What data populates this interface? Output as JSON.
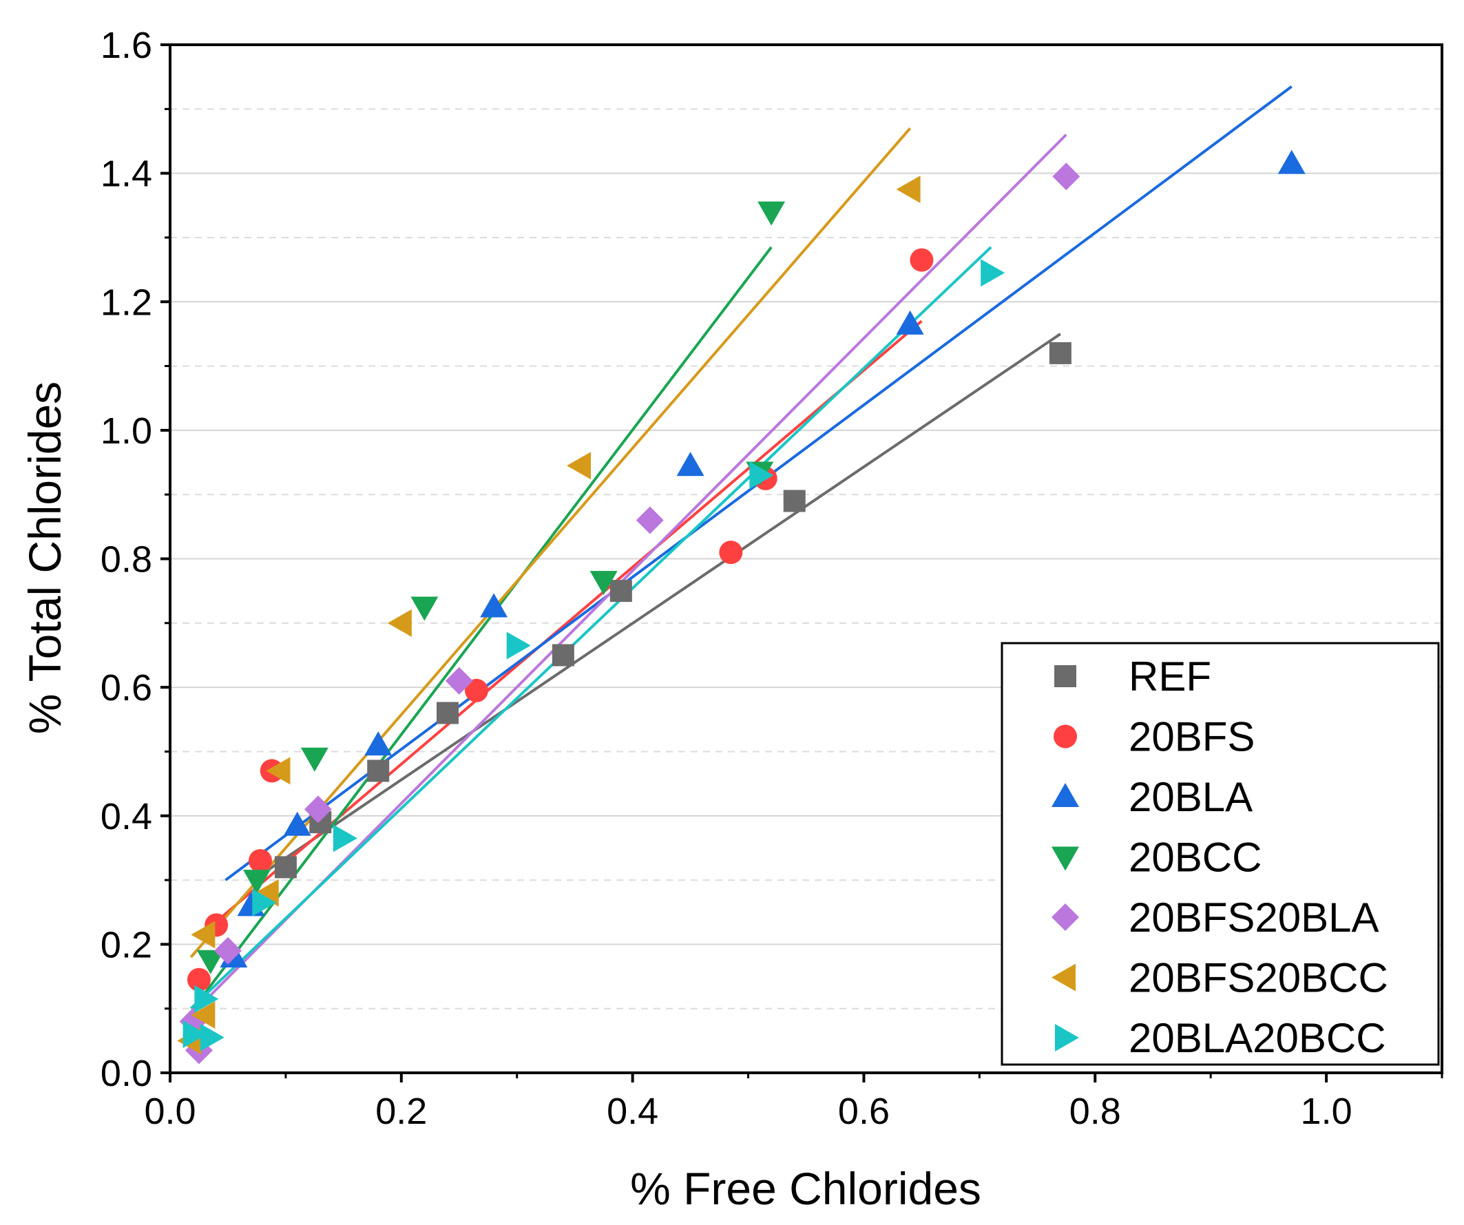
{
  "chart_data": {
    "type": "scatter",
    "title": "",
    "xlabel": "% Free Chlorides",
    "ylabel": "% Total Chlorides",
    "xlim": [
      0.0,
      1.1
    ],
    "ylim": [
      0.0,
      1.6
    ],
    "xticks": [
      "0.0",
      "0.2",
      "0.4",
      "0.6",
      "0.8",
      "1.0"
    ],
    "yticks": [
      "0.0",
      "0.2",
      "0.4",
      "0.6",
      "0.8",
      "1.0",
      "1.2",
      "1.4",
      "1.6"
    ],
    "legend_position": "bottom-right",
    "series": [
      {
        "name": "REF",
        "marker": "square",
        "color": "#6b6b6b",
        "points": [
          [
            0.1,
            0.32
          ],
          [
            0.13,
            0.39
          ],
          [
            0.18,
            0.47
          ],
          [
            0.24,
            0.56
          ],
          [
            0.34,
            0.65
          ],
          [
            0.39,
            0.75
          ],
          [
            0.54,
            0.89
          ],
          [
            0.77,
            1.12
          ]
        ],
        "fit": [
          [
            0.08,
            0.31
          ],
          [
            0.77,
            1.15
          ]
        ]
      },
      {
        "name": "20BFS",
        "marker": "circle",
        "color": "#ff4040",
        "points": [
          [
            0.025,
            0.145
          ],
          [
            0.04,
            0.23
          ],
          [
            0.078,
            0.33
          ],
          [
            0.088,
            0.47
          ],
          [
            0.265,
            0.595
          ],
          [
            0.485,
            0.81
          ],
          [
            0.515,
            0.925
          ],
          [
            0.65,
            1.265
          ]
        ],
        "fit": [
          [
            0.03,
            0.22
          ],
          [
            0.65,
            1.17
          ]
        ]
      },
      {
        "name": "20BLA",
        "marker": "triangle-up",
        "color": "#1a6ae0",
        "points": [
          [
            0.055,
            0.18
          ],
          [
            0.07,
            0.26
          ],
          [
            0.11,
            0.385
          ],
          [
            0.18,
            0.51
          ],
          [
            0.28,
            0.725
          ],
          [
            0.45,
            0.945
          ],
          [
            0.64,
            1.165
          ],
          [
            0.97,
            1.415
          ]
        ],
        "fit": [
          [
            0.048,
            0.3
          ],
          [
            0.97,
            1.535
          ]
        ]
      },
      {
        "name": "20BCC",
        "marker": "triangle-down",
        "color": "#1aa552",
        "points": [
          [
            0.035,
            0.175
          ],
          [
            0.075,
            0.3
          ],
          [
            0.125,
            0.49
          ],
          [
            0.22,
            0.725
          ],
          [
            0.375,
            0.765
          ],
          [
            0.51,
            0.935
          ],
          [
            0.52,
            1.34
          ]
        ],
        "fit": [
          [
            0.02,
            0.1
          ],
          [
            0.52,
            1.285
          ]
        ]
      },
      {
        "name": "20BFS20BLA",
        "marker": "diamond",
        "color": "#bb77dd",
        "points": [
          [
            0.025,
            0.035
          ],
          [
            0.02,
            0.08
          ],
          [
            0.05,
            0.19
          ],
          [
            0.128,
            0.41
          ],
          [
            0.25,
            0.61
          ],
          [
            0.415,
            0.86
          ],
          [
            0.775,
            1.395
          ]
        ],
        "fit": [
          [
            0.018,
            0.09
          ],
          [
            0.775,
            1.46
          ]
        ]
      },
      {
        "name": "20BFS20BCC",
        "marker": "triangle-left",
        "color": "#d69a1a",
        "points": [
          [
            0.018,
            0.05
          ],
          [
            0.03,
            0.09
          ],
          [
            0.03,
            0.215
          ],
          [
            0.085,
            0.28
          ],
          [
            0.095,
            0.47
          ],
          [
            0.2,
            0.7
          ],
          [
            0.355,
            0.945
          ],
          [
            0.64,
            1.375
          ]
        ],
        "fit": [
          [
            0.018,
            0.18
          ],
          [
            0.64,
            1.47
          ]
        ]
      },
      {
        "name": "20BLA20BCC",
        "marker": "triangle-right",
        "color": "#1ac5c5",
        "points": [
          [
            0.02,
            0.06
          ],
          [
            0.035,
            0.055
          ],
          [
            0.03,
            0.115
          ],
          [
            0.08,
            0.265
          ],
          [
            0.15,
            0.365
          ],
          [
            0.3,
            0.665
          ],
          [
            0.51,
            0.93
          ],
          [
            0.71,
            1.245
          ]
        ],
        "fit": [
          [
            0.018,
            0.1
          ],
          [
            0.71,
            1.285
          ]
        ]
      }
    ]
  }
}
